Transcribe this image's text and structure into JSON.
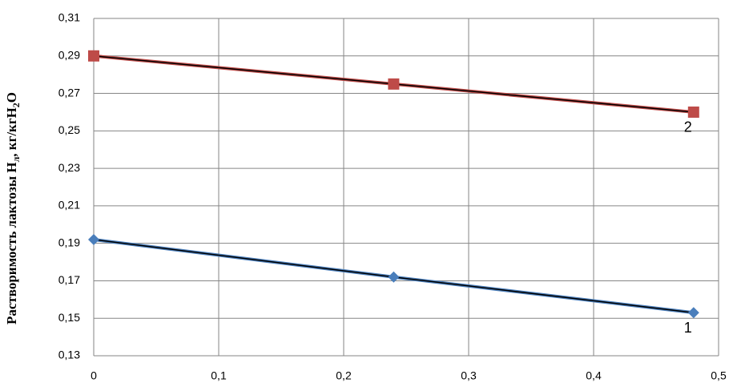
{
  "chart_data": {
    "type": "line",
    "ylabel": [
      "Растворимость лактозы Н",
      "л",
      ", кг/кгН",
      "2",
      "О"
    ],
    "xlim": [
      0,
      0.5
    ],
    "xticks": [
      0,
      {
        "value": 0.1,
        "label": "0,1"
      },
      {
        "value": 0.2,
        "label": "0,2"
      },
      {
        "value": 0.3,
        "label": "0,3"
      },
      {
        "value": 0.4,
        "label": "0,4"
      },
      {
        "value": 0.5,
        "label": "0,5"
      }
    ],
    "ylim": [
      0.13,
      0.31
    ],
    "yticks": [
      {
        "value": 0.13,
        "label": "0,13"
      },
      {
        "value": 0.15,
        "label": "0,15"
      },
      {
        "value": 0.17,
        "label": "0,17"
      },
      {
        "value": 0.19,
        "label": "0,19"
      },
      {
        "value": 0.21,
        "label": "0,21"
      },
      {
        "value": 0.23,
        "label": "0,23"
      },
      {
        "value": 0.25,
        "label": "0,25"
      },
      {
        "value": 0.27,
        "label": "0,27"
      },
      {
        "value": 0.29,
        "label": "0,29"
      },
      {
        "value": 0.31,
        "label": "0,31"
      }
    ],
    "grid": true,
    "series": [
      {
        "name": "1",
        "color": "#4a7ebb",
        "marker": "diamond",
        "x": [
          0,
          0.24,
          0.48
        ],
        "values": [
          0.192,
          0.172,
          0.153
        ]
      },
      {
        "name": "2",
        "color": "#be4b48",
        "marker": "square",
        "x": [
          0,
          0.24,
          0.48
        ],
        "values": [
          0.29,
          0.275,
          0.26
        ]
      }
    ]
  }
}
